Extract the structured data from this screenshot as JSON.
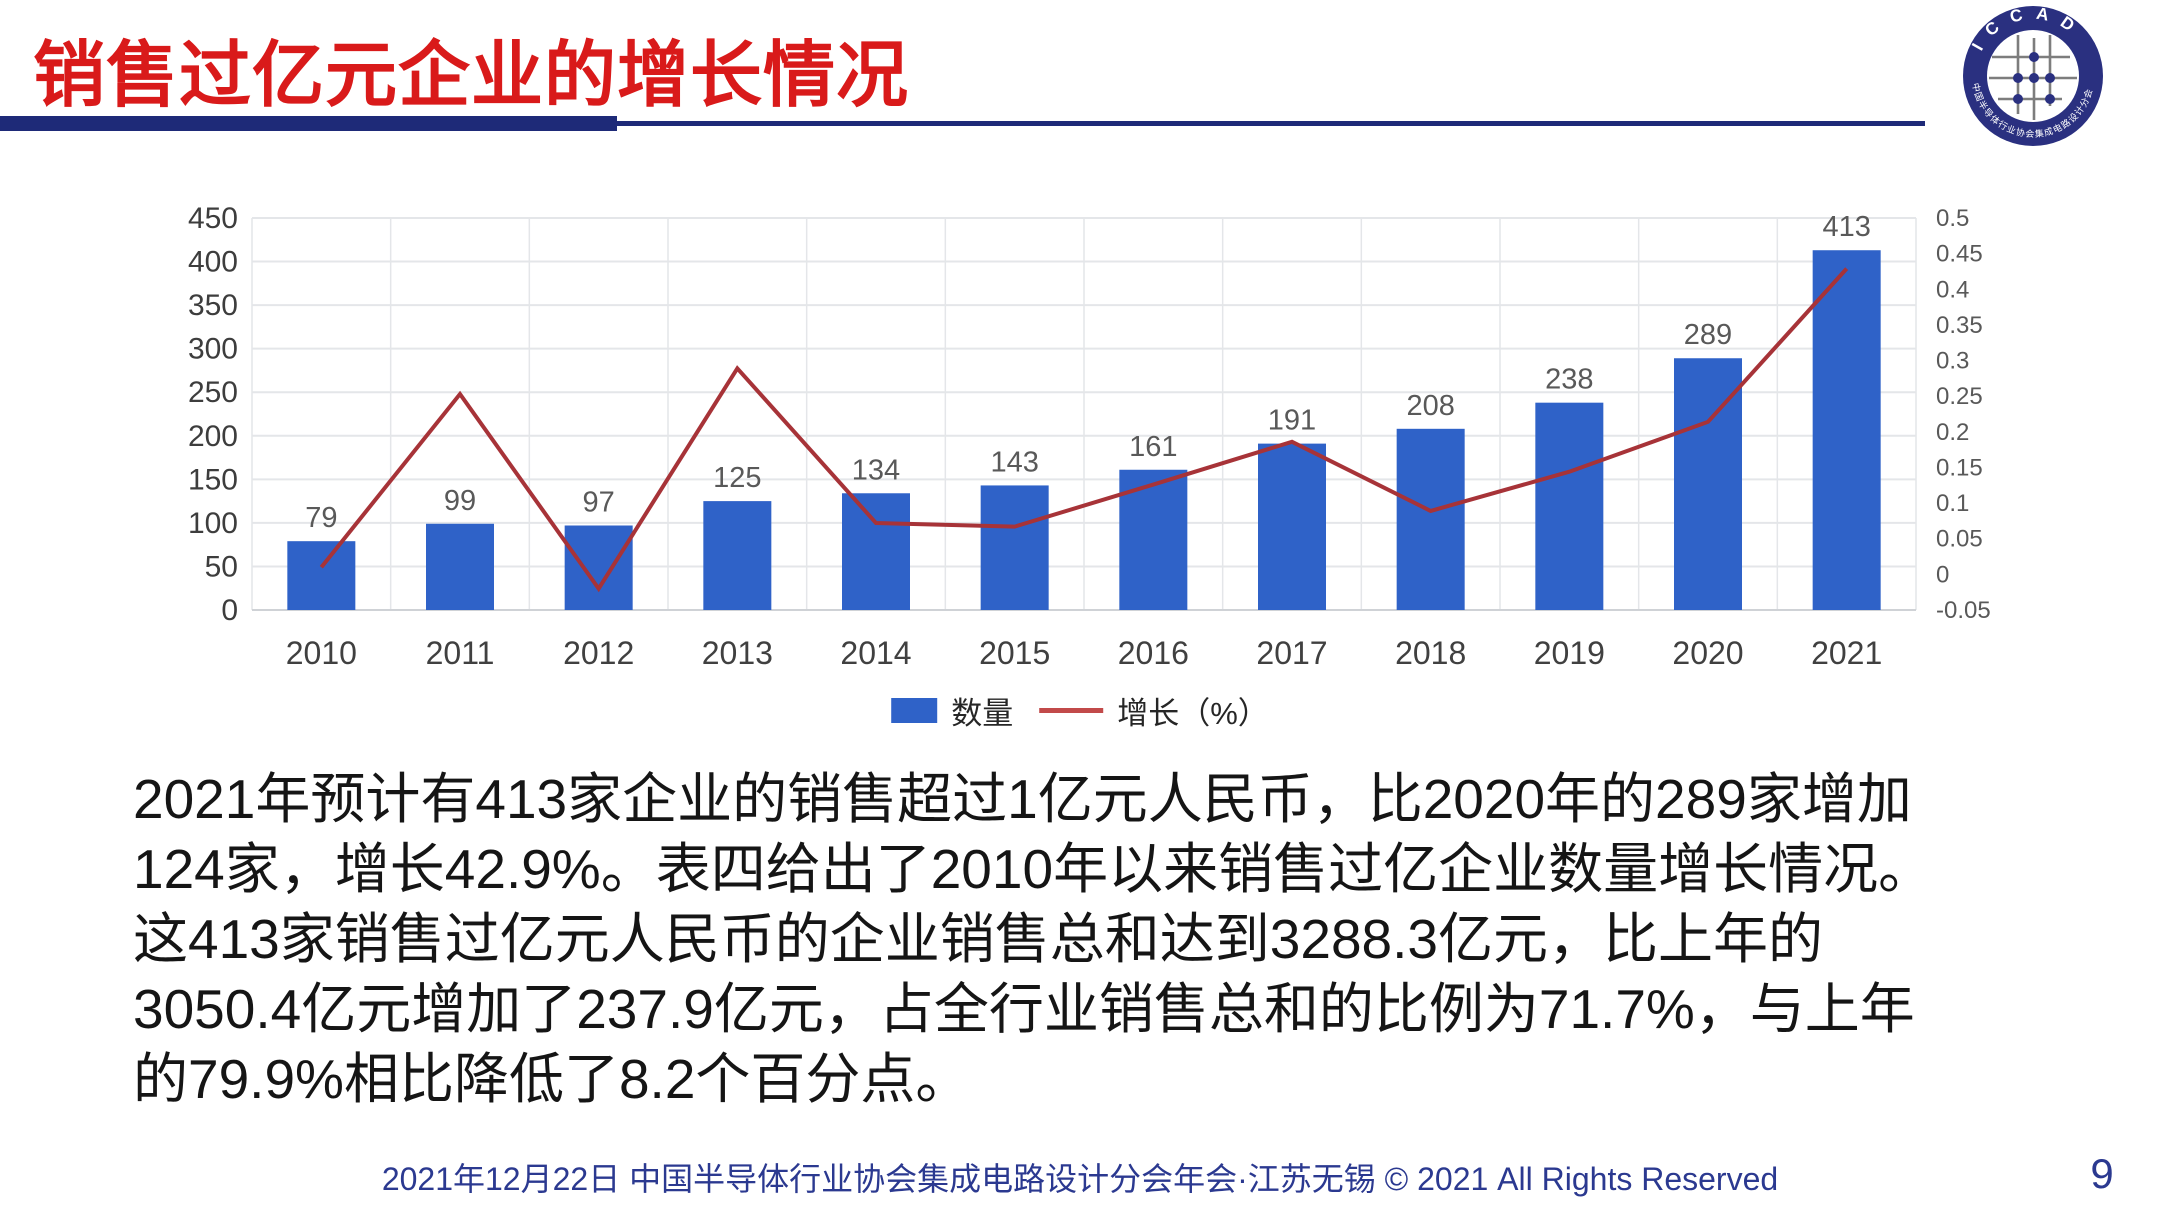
{
  "header": {
    "title": "销售过亿元企业的增长情况",
    "page_number": "9"
  },
  "logo": {
    "acronym": "I C C A D",
    "ring_text": "中国半导体行业协会集成电路设计分会"
  },
  "chart_data": {
    "type": "bar",
    "subtype": "combo-bar-line",
    "categories": [
      "2010",
      "2011",
      "2012",
      "2013",
      "2014",
      "2015",
      "2016",
      "2017",
      "2018",
      "2019",
      "2020",
      "2021"
    ],
    "series": [
      {
        "name": "数量",
        "type": "bar",
        "axis": "left",
        "color": "#2F62C8",
        "values": [
          79,
          99,
          97,
          125,
          134,
          143,
          161,
          191,
          208,
          238,
          289,
          413
        ]
      },
      {
        "name": "增长（%）",
        "type": "line",
        "axis": "right",
        "color": "#A73338",
        "values": [
          0.01,
          0.253,
          -0.02,
          0.289,
          0.072,
          0.067,
          0.126,
          0.186,
          0.089,
          0.144,
          0.214,
          0.429
        ]
      }
    ],
    "left_axis": {
      "min": 0,
      "max": 450,
      "step": 50
    },
    "right_axis": {
      "min": -0.05,
      "max": 0.5,
      "step": 0.05
    },
    "grid": true,
    "grid_color": "#E4E6E9",
    "legend_position": "bottom",
    "bar_labels_shown": true
  },
  "body": {
    "lines": [
      "2021年预计有413家企业的销售超过1亿元人民币，比2020年的289家增加",
      "124家，增长42.9%。表四给出了2010年以来销售过亿企业数量增长情况。",
      "这413家销售过亿元人民币的企业销售总和达到3288.3亿元，比上年的",
      "3050.4亿元增加了237.9亿元，占全行业销售总和的比例为71.7%，与上年",
      "的79.9%相比降低了8.2个百分点。"
    ]
  },
  "footer": {
    "text": "2021年12月22日 中国半导体行业协会集成电路设计分会年会·江苏无锡 © 2021 All Rights Reserved"
  }
}
